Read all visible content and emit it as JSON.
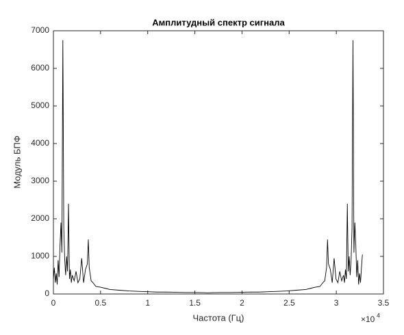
{
  "chart_data": {
    "type": "line",
    "title": "Амплитудный спектр сигнала",
    "x_label": "Частота (Гц)",
    "y_label": "Модуль БПФ",
    "x_multiplier": "×10",
    "x_multiplier_power": "4",
    "color": "#000000",
    "x": [
      0,
      100,
      200,
      300,
      400,
      500,
      600,
      700,
      800,
      900,
      1000,
      1100,
      1200,
      1300,
      1400,
      1500,
      1600,
      1700,
      1800,
      1900,
      2000,
      2200,
      2400,
      2600,
      2800,
      3000,
      3200,
      3400,
      3600,
      3700,
      3800,
      4000,
      4200,
      4500,
      5000,
      5500,
      6000,
      7000,
      8000,
      9000,
      10000,
      11000,
      12000,
      13000,
      14000,
      15000,
      16000,
      16384,
      16768,
      17768,
      18768,
      19768,
      20768,
      21768,
      22768,
      23768,
      24768,
      25768,
      26768,
      27268,
      27768,
      28268,
      28568,
      28768,
      28968,
      29068,
      29168,
      29368,
      29568,
      29768,
      29968,
      30168,
      30368,
      30568,
      30768,
      30868,
      30968,
      31068,
      31168,
      31268,
      31368,
      31468,
      31568,
      31668,
      31768,
      31868,
      31968,
      32068,
      32168,
      32268,
      32368,
      32468,
      32568,
      32668,
      32768
    ],
    "values": [
      400,
      700,
      300,
      550,
      250,
      900,
      450,
      1300,
      1900,
      1100,
      6750,
      1750,
      900,
      500,
      1000,
      600,
      2400,
      400,
      650,
      300,
      500,
      350,
      600,
      300,
      400,
      950,
      300,
      650,
      800,
      1450,
      700,
      350,
      300,
      200,
      180,
      150,
      120,
      100,
      80,
      70,
      60,
      50,
      50,
      45,
      40,
      40,
      35,
      30,
      35,
      40,
      40,
      45,
      50,
      50,
      60,
      70,
      80,
      100,
      120,
      150,
      180,
      200,
      300,
      350,
      700,
      1450,
      800,
      650,
      300,
      950,
      400,
      300,
      600,
      350,
      500,
      300,
      650,
      400,
      2400,
      600,
      1000,
      500,
      900,
      1750,
      6750,
      1100,
      1900,
      1300,
      450,
      900,
      250,
      550,
      300,
      700,
      1050
    ],
    "xlim": [
      0,
      35000
    ],
    "ylim": [
      0,
      7000
    ],
    "xticks": [
      0,
      {
        "value": 5000,
        "label": "0.5"
      },
      {
        "value": 10000,
        "label": "1"
      },
      {
        "value": 15000,
        "label": "1.5"
      },
      {
        "value": 20000,
        "label": "2"
      },
      {
        "value": 25000,
        "label": "2.5"
      },
      {
        "value": 30000,
        "label": "3"
      },
      {
        "value": 35000,
        "label": "3.5"
      }
    ],
    "yticks": [
      0,
      1000,
      2000,
      3000,
      4000,
      5000,
      6000,
      7000
    ]
  }
}
